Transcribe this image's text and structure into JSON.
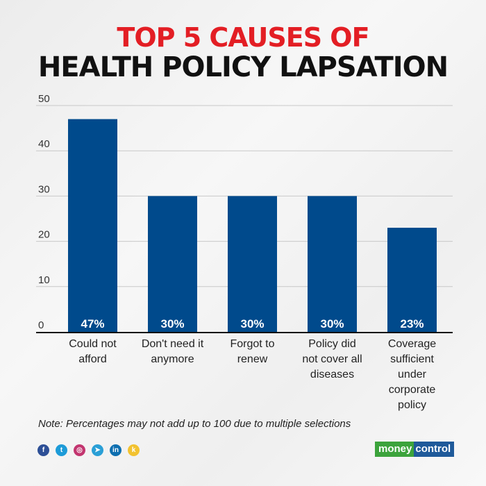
{
  "title_line1": "TOP 5 CAUSES OF",
  "title_line2": "HEALTH POLICY LAPSATION",
  "chart_data": {
    "type": "bar",
    "title": "TOP 5 CAUSES OF HEALTH POLICY LAPSATION",
    "categories": [
      [
        "Could not",
        "afford"
      ],
      [
        "Don't need it",
        "anymore"
      ],
      [
        "Forgot to",
        "renew"
      ],
      [
        "Policy did",
        "not cover all",
        "diseases"
      ],
      [
        "Coverage",
        "sufficient",
        "under",
        "corporate",
        "policy"
      ]
    ],
    "values": [
      47,
      30,
      30,
      30,
      23
    ],
    "data_labels": [
      "47%",
      "30%",
      "30%",
      "30%",
      "23%"
    ],
    "yticks": [
      0,
      10,
      20,
      30,
      40,
      50
    ],
    "ylim": [
      0,
      50
    ],
    "grid": true,
    "bar_color": "#004a8c",
    "xlabel": "",
    "ylabel": ""
  },
  "note": "Note: Percentages may not add up to 100 due to multiple selections",
  "social": [
    {
      "icon": "facebook-icon",
      "glyph": "f",
      "color": "#2d4f96"
    },
    {
      "icon": "twitter-icon",
      "glyph": "t",
      "color": "#1d9bd8"
    },
    {
      "icon": "instagram-icon",
      "glyph": "◎",
      "color": "#c2356f"
    },
    {
      "icon": "telegram-icon",
      "glyph": "➤",
      "color": "#2a9fd6"
    },
    {
      "icon": "linkedin-icon",
      "glyph": "in",
      "color": "#0e6fb0"
    },
    {
      "icon": "koo-icon",
      "glyph": "k",
      "color": "#f2c230"
    }
  ],
  "logo": {
    "part1": "money",
    "part2": "control"
  }
}
